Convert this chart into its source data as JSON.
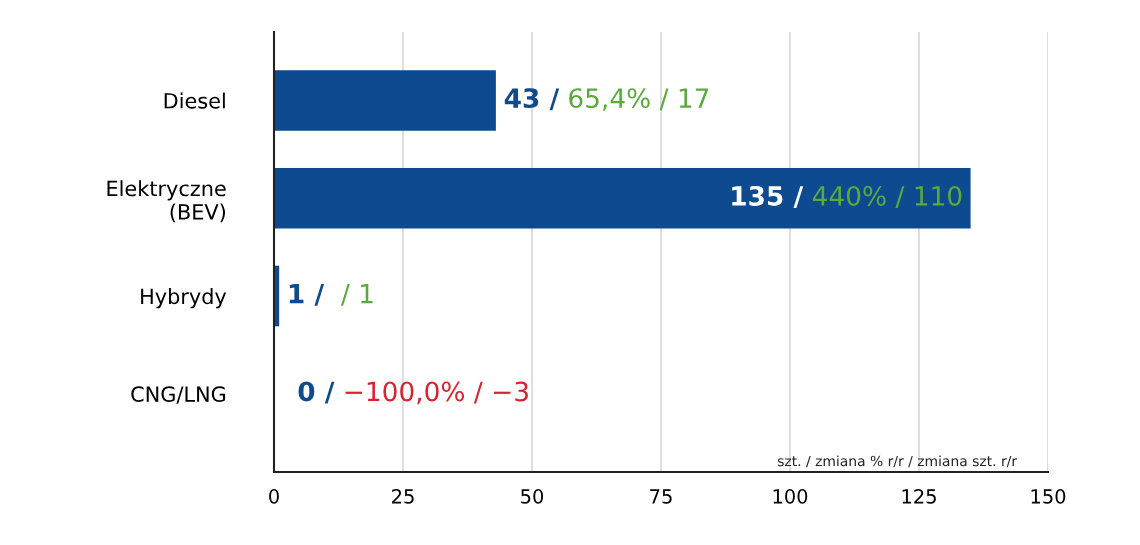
{
  "chart_data": {
    "type": "bar",
    "orientation": "horizontal",
    "categories": [
      "Diesel",
      "Elektryczne\n(BEV)",
      "Hybrydy",
      "CNG/LNG"
    ],
    "series": [
      {
        "color": "#0d4a8f",
        "values": [
          43,
          135,
          1,
          0
        ],
        "value_labels": [
          "43 /",
          "135 /",
          "1 /",
          "0 /"
        ]
      }
    ],
    "xlim": [
      0,
      150
    ],
    "xticks": [
      0,
      25,
      50,
      75,
      100,
      125,
      150
    ],
    "grid": "x",
    "annotations": [
      {
        "text": "65,4% / 17",
        "x": 43,
        "y": "Diesel"
      },
      {
        "text": "440% / 110",
        "x": 135,
        "y": "Elektryczne\n(BEV)"
      },
      {
        "text": " / 1",
        "x": 1,
        "y": "Hybrydy"
      },
      {
        "text": "−100,0% / −3",
        "x": 0,
        "y": "CNG/LNG"
      },
      "szt. / zmiana % r/r / zmiana szt. r/r"
    ]
  }
}
